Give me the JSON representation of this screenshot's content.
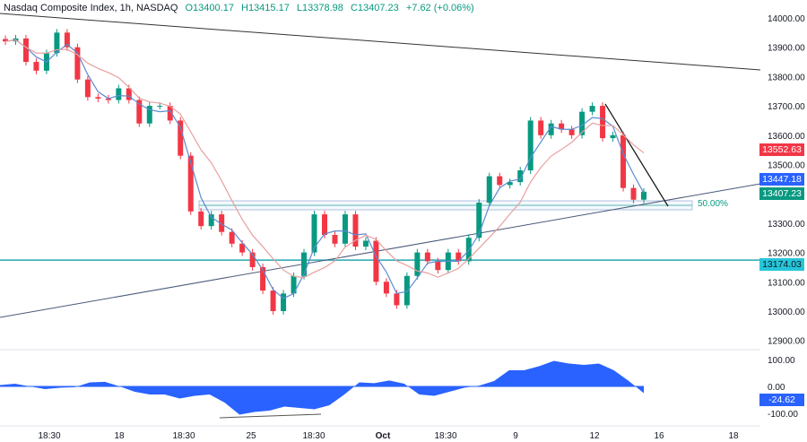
{
  "header": {
    "symbol": "Nasdaq Composite Index, 1h, NASDAQ",
    "open": "O13400.17",
    "high": "H13415.17",
    "low": "L13378.98",
    "close": "C13407.23",
    "change": "+7.62 (+0.06%)"
  },
  "colors": {
    "up": "#089981",
    "down": "#f23645",
    "ma_fast": "#5b8bd0",
    "ma_slow": "#e8a0a0",
    "horizontal": "#26a6b0",
    "oscillator": "#2962ff"
  },
  "price_axis": {
    "ticks": [
      "14000.00",
      "13900.00",
      "13800.00",
      "13700.00",
      "13600.00",
      "13500.00",
      "13300.00",
      "13200.00",
      "13100.00",
      "13000.00",
      "12900.00"
    ]
  },
  "price_labels": [
    {
      "value": "13552.63",
      "color": "#f23645"
    },
    {
      "value": "13447.18",
      "color": "#2962ff"
    },
    {
      "value": "13407.23",
      "color": "#089981"
    },
    {
      "value": "13174.03",
      "color": "#26c6da"
    }
  ],
  "fib_label": "50.00%",
  "oscillator_axis": {
    "ticks": [
      "100.00",
      "0.00",
      "-100.00"
    ],
    "current": "-24.62"
  },
  "time_axis": [
    "18:30",
    "18",
    "18:30",
    "25",
    "18:30",
    "Oct",
    "18:30",
    "9",
    "12",
    "16",
    "18"
  ],
  "chart_data": {
    "type": "candlestick",
    "closes": [
      13920,
      13930,
      13850,
      13820,
      13880,
      13950,
      13900,
      13790,
      13730,
      13725,
      13720,
      13760,
      13720,
      13640,
      13700,
      13700,
      13650,
      13530,
      13340,
      13290,
      13330,
      13270,
      13230,
      13200,
      13150,
      13070,
      13000,
      13060,
      13120,
      13200,
      13330,
      13260,
      13230,
      13330,
      13220,
      13240,
      13100,
      13060,
      13020,
      13120,
      13200,
      13170,
      13140,
      13200,
      13170,
      13250,
      13370,
      13460,
      13430,
      13440,
      13480,
      13650,
      13600,
      13640,
      13620,
      13600,
      13680,
      13700,
      13590,
      13600,
      13420,
      13380,
      13407.23
    ],
    "oscillator": [
      5,
      10,
      0,
      -10,
      -5,
      -3,
      15,
      17,
      0,
      -20,
      -30,
      -30,
      -45,
      -35,
      -30,
      -60,
      -105,
      -95,
      -90,
      -75,
      -80,
      -85,
      -70,
      -30,
      15,
      12,
      22,
      10,
      -30,
      -35,
      -20,
      -5,
      3,
      20,
      60,
      60,
      75,
      95,
      85,
      80,
      85,
      60,
      20,
      -25
    ],
    "horizontal_level": 13174.03,
    "fib_level": "50.00%"
  }
}
